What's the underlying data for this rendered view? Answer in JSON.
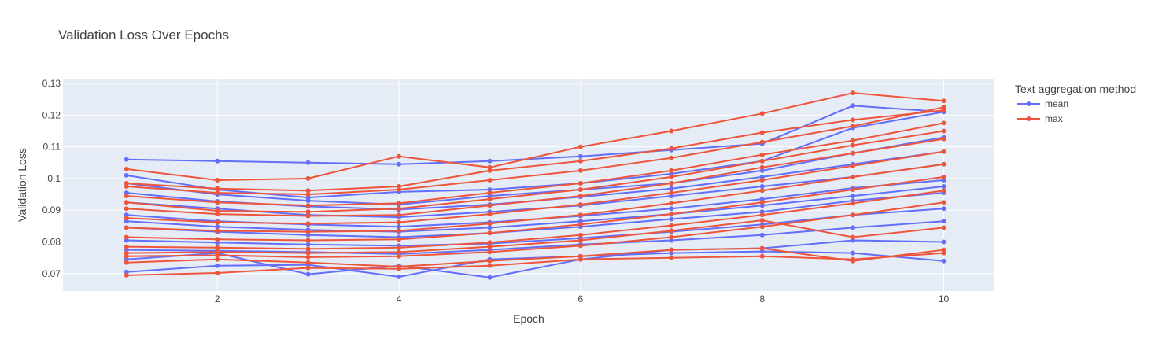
{
  "chart_data": {
    "type": "line",
    "title": "Validation Loss Over Epochs",
    "xlabel": "Epoch",
    "ylabel": "Validation Loss",
    "xlim": [
      0.3,
      10.55
    ],
    "ylim": [
      0.0645,
      0.1315
    ],
    "x_ticks": [
      2,
      4,
      6,
      8,
      10
    ],
    "y_ticks": [
      0.07,
      0.08,
      0.09,
      0.1,
      0.11,
      0.12,
      0.13
    ],
    "x_tick_labels": [
      "2",
      "4",
      "6",
      "8",
      "10"
    ],
    "y_tick_labels": [
      "0.07",
      "0.08",
      "0.09",
      "0.1",
      "0.11",
      "0.12",
      "0.13"
    ],
    "grid": true,
    "legend": {
      "title": "Text aggregation method",
      "position": "right",
      "entries": [
        "mean",
        "max"
      ]
    },
    "colors": {
      "mean": "#636efa",
      "max": "#ef553b",
      "plot_bg": "#e5ecf6",
      "grid": "#ffffff"
    },
    "series": [
      {
        "name": "mean",
        "x": [
          1,
          2,
          3,
          4,
          5,
          6,
          7,
          8,
          9,
          10
        ],
        "values": [
          0.106,
          0.1055,
          0.105,
          0.1045,
          0.1055,
          0.107,
          0.109,
          0.111,
          0.123,
          0.121
        ]
      },
      {
        "name": "mean",
        "x": [
          1,
          2,
          3,
          4,
          5,
          6,
          7,
          8,
          9,
          10
        ],
        "values": [
          0.0705,
          0.0725,
          0.0728,
          0.069,
          0.0745,
          0.0755,
          0.0765,
          0.077,
          0.0765,
          0.074
        ]
      },
      {
        "name": "mean",
        "x": [
          1,
          2,
          3,
          4,
          5,
          6,
          7,
          8,
          9,
          10
        ],
        "values": [
          0.0745,
          0.0765,
          0.0698,
          0.0725,
          0.0688,
          0.0745,
          0.0775,
          0.078,
          0.0805,
          0.08
        ]
      },
      {
        "name": "mean",
        "x": [
          1,
          2,
          3,
          4,
          5,
          6,
          7,
          8,
          9,
          10
        ],
        "values": [
          0.101,
          0.0965,
          0.094,
          0.0958,
          0.0965,
          0.0985,
          0.1015,
          0.1055,
          0.116,
          0.121
        ]
      },
      {
        "name": "mean",
        "x": [
          1,
          2,
          3,
          4,
          5,
          6,
          7,
          8,
          9,
          10
        ],
        "values": [
          0.0985,
          0.095,
          0.093,
          0.0918,
          0.0945,
          0.0965,
          0.0985,
          0.1025,
          0.108,
          0.113
        ]
      },
      {
        "name": "mean",
        "x": [
          1,
          2,
          3,
          4,
          5,
          6,
          7,
          8,
          9,
          10
        ],
        "values": [
          0.0925,
          0.0905,
          0.0885,
          0.0878,
          0.0895,
          0.0915,
          0.0945,
          0.0975,
          0.1005,
          0.1045
        ]
      },
      {
        "name": "mean",
        "x": [
          1,
          2,
          3,
          4,
          5,
          6,
          7,
          8,
          9,
          10
        ],
        "values": [
          0.0885,
          0.0865,
          0.0855,
          0.0848,
          0.0862,
          0.0882,
          0.0905,
          0.0935,
          0.097,
          0.0995
        ]
      },
      {
        "name": "mean",
        "x": [
          1,
          2,
          3,
          4,
          5,
          6,
          7,
          8,
          9,
          10
        ],
        "values": [
          0.0845,
          0.0832,
          0.0822,
          0.0815,
          0.0828,
          0.0848,
          0.0872,
          0.0895,
          0.093,
          0.0955
        ]
      },
      {
        "name": "mean",
        "x": [
          1,
          2,
          3,
          4,
          5,
          6,
          7,
          8,
          9,
          10
        ],
        "values": [
          0.0805,
          0.0798,
          0.0792,
          0.0788,
          0.0795,
          0.0812,
          0.0832,
          0.0855,
          0.0885,
          0.0905
        ]
      },
      {
        "name": "mean",
        "x": [
          1,
          2,
          3,
          4,
          5,
          6,
          7,
          8,
          9,
          10
        ],
        "values": [
          0.0775,
          0.0772,
          0.0768,
          0.0762,
          0.0775,
          0.0792,
          0.0805,
          0.0822,
          0.0845,
          0.0865
        ]
      },
      {
        "name": "mean",
        "x": [
          1,
          2,
          3,
          4,
          5,
          6,
          7,
          8,
          9,
          10
        ],
        "values": [
          0.0955,
          0.0928,
          0.0912,
          0.0902,
          0.0918,
          0.0942,
          0.0968,
          0.1005,
          0.1045,
          0.1085
        ]
      },
      {
        "name": "mean",
        "x": [
          1,
          2,
          3,
          4,
          5,
          6,
          7,
          8,
          9,
          10
        ],
        "values": [
          0.0865,
          0.0848,
          0.0838,
          0.0832,
          0.0845,
          0.0865,
          0.0888,
          0.0915,
          0.0945,
          0.0975
        ]
      },
      {
        "name": "max",
        "x": [
          1,
          2,
          3,
          4,
          5,
          6,
          7,
          8,
          9,
          10
        ],
        "values": [
          0.103,
          0.0995,
          0.1,
          0.107,
          0.1035,
          0.11,
          0.115,
          0.1205,
          0.127,
          0.1245
        ]
      },
      {
        "name": "max",
        "x": [
          1,
          2,
          3,
          4,
          5,
          6,
          7,
          8,
          9,
          10
        ],
        "values": [
          0.0695,
          0.0702,
          0.0718,
          0.0715,
          0.0725,
          0.0745,
          0.075,
          0.0755,
          0.0745,
          0.0765
        ]
      },
      {
        "name": "max",
        "x": [
          1,
          2,
          3,
          4,
          5,
          6,
          7,
          8,
          9,
          10
        ],
        "values": [
          0.0735,
          0.0745,
          0.0735,
          0.0722,
          0.074,
          0.0755,
          0.0775,
          0.078,
          0.074,
          0.0775
        ]
      },
      {
        "name": "max",
        "x": [
          1,
          2,
          3,
          4,
          5,
          6,
          7,
          8,
          9,
          10
        ],
        "values": [
          0.0975,
          0.0955,
          0.095,
          0.0965,
          0.0995,
          0.1025,
          0.1065,
          0.1115,
          0.1165,
          0.1225
        ]
      },
      {
        "name": "max",
        "x": [
          1,
          2,
          3,
          4,
          5,
          6,
          7,
          8,
          9,
          10
        ],
        "values": [
          0.0945,
          0.0925,
          0.0915,
          0.0922,
          0.0955,
          0.0985,
          0.1025,
          0.1075,
          0.112,
          0.1175
        ]
      },
      {
        "name": "max",
        "x": [
          1,
          2,
          3,
          4,
          5,
          6,
          7,
          8,
          9,
          10
        ],
        "values": [
          0.0905,
          0.0888,
          0.0882,
          0.0885,
          0.0915,
          0.0945,
          0.0985,
          0.1035,
          0.108,
          0.1125
        ]
      },
      {
        "name": "max",
        "x": [
          1,
          2,
          3,
          4,
          5,
          6,
          7,
          8,
          9,
          10
        ],
        "values": [
          0.0875,
          0.0862,
          0.0858,
          0.0862,
          0.0888,
          0.0918,
          0.0955,
          0.0995,
          0.104,
          0.1085
        ]
      },
      {
        "name": "max",
        "x": [
          1,
          2,
          3,
          4,
          5,
          6,
          7,
          8,
          9,
          10
        ],
        "values": [
          0.0845,
          0.0835,
          0.0832,
          0.0835,
          0.0858,
          0.0885,
          0.0922,
          0.0962,
          0.1005,
          0.1045
        ]
      },
      {
        "name": "max",
        "x": [
          1,
          2,
          3,
          4,
          5,
          6,
          7,
          8,
          9,
          10
        ],
        "values": [
          0.0815,
          0.0808,
          0.0805,
          0.0808,
          0.0828,
          0.0855,
          0.0888,
          0.0925,
          0.0965,
          0.1005
        ]
      },
      {
        "name": "max",
        "x": [
          1,
          2,
          3,
          4,
          5,
          6,
          7,
          8,
          9,
          10
        ],
        "values": [
          0.0785,
          0.0782,
          0.0778,
          0.0782,
          0.0798,
          0.0822,
          0.0852,
          0.0885,
          0.0922,
          0.0962
        ]
      },
      {
        "name": "max",
        "x": [
          1,
          2,
          3,
          4,
          5,
          6,
          7,
          8,
          9,
          10
        ],
        "values": [
          0.0755,
          0.0758,
          0.0752,
          0.0755,
          0.0768,
          0.0788,
          0.0815,
          0.0848,
          0.0885,
          0.0925
        ]
      },
      {
        "name": "max",
        "x": [
          1,
          2,
          3,
          4,
          5,
          6,
          7,
          8,
          9,
          10
        ],
        "values": [
          0.0925,
          0.0898,
          0.0895,
          0.0905,
          0.0935,
          0.0965,
          0.1005,
          0.1055,
          0.1105,
          0.115
        ]
      },
      {
        "name": "max",
        "x": [
          1,
          2,
          3,
          4,
          5,
          6,
          7,
          8,
          9,
          10
        ],
        "values": [
          0.0985,
          0.0968,
          0.0962,
          0.0975,
          0.1025,
          0.1055,
          0.1095,
          0.1145,
          0.1185,
          0.1215
        ]
      },
      {
        "name": "max",
        "x": [
          1,
          2,
          3,
          4,
          5,
          6,
          7,
          8,
          9,
          10
        ],
        "values": [
          0.0765,
          0.0768,
          0.0765,
          0.0768,
          0.0785,
          0.0805,
          0.0835,
          0.0868,
          0.0815,
          0.0845
        ]
      }
    ]
  }
}
